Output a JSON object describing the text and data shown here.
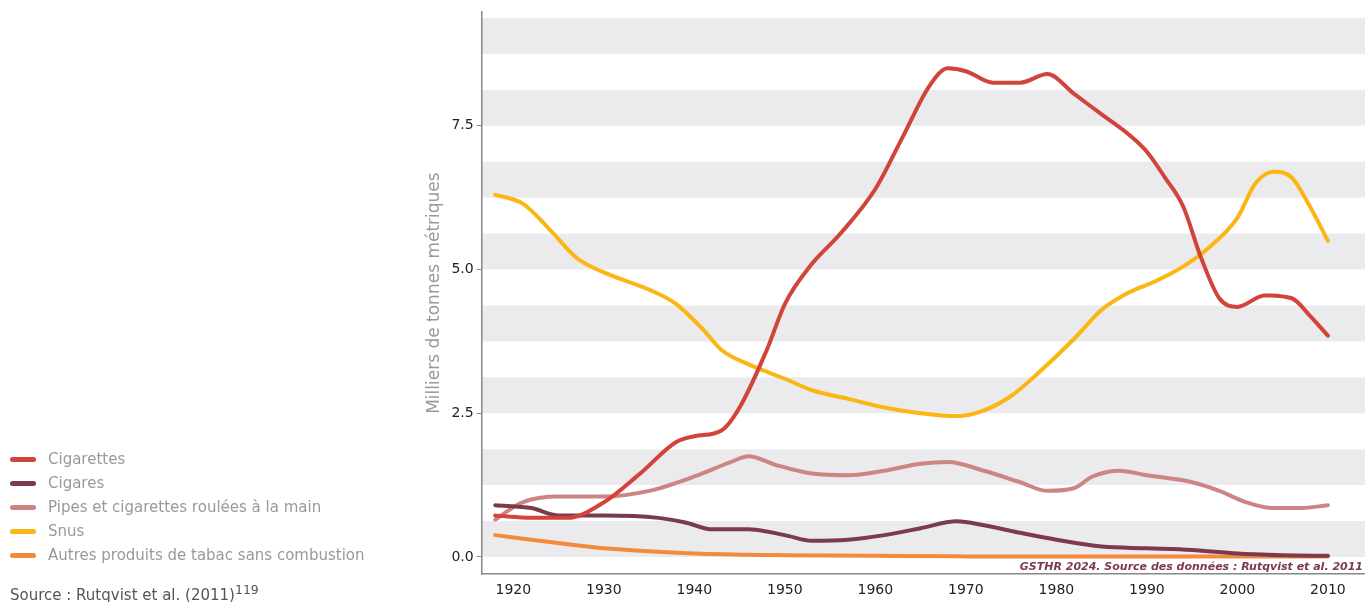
{
  "chart_data": {
    "type": "line",
    "ylabel": "Milliers de tonnes métriques",
    "xlim": [
      1916.5,
      2014.1
    ],
    "xticks": [
      1920,
      1930,
      1940,
      1950,
      1960,
      1970,
      1980,
      1990,
      2000,
      2010
    ],
    "ylim": [
      -0.3,
      9.48
    ],
    "yticks": [
      {
        "value": 0,
        "label": "0.0"
      },
      2.5,
      {
        "value": 5,
        "label": "5.0"
      },
      7.5
    ],
    "legend": "bottom left",
    "marker": "none",
    "line_style": "solid",
    "bands": [
      {
        "axis": "y",
        "from": 0,
        "to": 0.625,
        "color": "#ebebed"
      },
      {
        "axis": "y",
        "from": 1.25,
        "to": 1.875,
        "color": "#ebebed"
      },
      {
        "axis": "y",
        "from": 2.5,
        "to": 3.125,
        "color": "#ebebed"
      },
      {
        "axis": "y",
        "from": 3.75,
        "to": 4.375,
        "color": "#ebebed"
      },
      {
        "axis": "y",
        "from": 5,
        "to": 5.625,
        "color": "#ebebed"
      },
      {
        "axis": "y",
        "from": 6.25,
        "to": 6.875,
        "color": "#ebebed"
      },
      {
        "axis": "y",
        "from": 7.5,
        "to": 8.125,
        "color": "#ebebed"
      },
      {
        "axis": "y",
        "from": 8.75,
        "to": 9.375,
        "color": "#ebebed"
      }
    ],
    "annotations": [
      "GSTHR 2024. Source des données : Rutqvist et al. 2011",
      "Source : Rutqvist et al. (2011)$^{119}$"
    ],
    "series": [
      {
        "name": "Cigarettes",
        "color": "#d0443a",
        "x": [
          1918,
          1922,
          1926,
          1930,
          1934,
          1938,
          1940,
          1943,
          1945,
          1948,
          1950,
          1953,
          1956,
          1960,
          1963,
          1966,
          1968,
          1970,
          1973,
          1976,
          1979,
          1982,
          1985,
          1988,
          1990,
          1992,
          1994,
          1996,
          1998,
          2000,
          2003,
          2006,
          2008,
          2010
        ],
        "values": [
          0.72,
          0.68,
          0.68,
          0.95,
          1.45,
          2.0,
          2.1,
          2.2,
          2.6,
          3.6,
          4.4,
          5.1,
          5.6,
          6.4,
          7.3,
          8.2,
          8.5,
          8.45,
          8.25,
          8.25,
          8.4,
          8.05,
          7.7,
          7.35,
          7.05,
          6.6,
          6.1,
          5.2,
          4.5,
          4.35,
          4.55,
          4.5,
          4.2,
          3.85
        ]
      },
      {
        "name": "Cigares",
        "color": "#7d3a4a",
        "x": [
          1918,
          1922,
          1925,
          1930,
          1936,
          1939,
          1942,
          1946,
          1950,
          1953,
          1957,
          1961,
          1965,
          1969,
          1972,
          1976,
          1980,
          1985,
          1990,
          1995,
          2000,
          2005,
          2010
        ],
        "values": [
          0.9,
          0.85,
          0.72,
          0.72,
          0.68,
          0.6,
          0.48,
          0.48,
          0.38,
          0.28,
          0.3,
          0.38,
          0.5,
          0.62,
          0.55,
          0.42,
          0.3,
          0.18,
          0.15,
          0.12,
          0.06,
          0.03,
          0.02
        ]
      },
      {
        "name": "Pipes et cigarettes roulées à la main",
        "color": "#cc8583",
        "x": [
          1918,
          1921,
          1925,
          1930,
          1935,
          1940,
          1944,
          1946,
          1949,
          1953,
          1957,
          1961,
          1965,
          1968,
          1972,
          1976,
          1979,
          1982,
          1984,
          1987,
          1990,
          1995,
          1998,
          2001,
          2004,
          2007,
          2010
        ],
        "values": [
          0.65,
          0.95,
          1.05,
          1.05,
          1.15,
          1.4,
          1.65,
          1.75,
          1.6,
          1.45,
          1.42,
          1.5,
          1.62,
          1.65,
          1.5,
          1.3,
          1.15,
          1.2,
          1.4,
          1.5,
          1.42,
          1.3,
          1.15,
          0.95,
          0.85,
          0.85,
          0.9
        ]
      },
      {
        "name": "Snus",
        "color": "#fbb614",
        "x": [
          1918,
          1921,
          1924,
          1927,
          1930,
          1935,
          1938,
          1941,
          1943,
          1946,
          1950,
          1953,
          1957,
          1961,
          1965,
          1969,
          1972,
          1975,
          1978,
          1982,
          1985,
          1988,
          1991,
          1994,
          1997,
          2000,
          2002,
          2004,
          2006,
          2008,
          2010
        ],
        "values": [
          6.3,
          6.15,
          5.7,
          5.2,
          4.95,
          4.65,
          4.4,
          3.95,
          3.6,
          3.35,
          3.1,
          2.9,
          2.75,
          2.6,
          2.5,
          2.45,
          2.55,
          2.8,
          3.2,
          3.8,
          4.3,
          4.6,
          4.8,
          5.05,
          5.4,
          5.9,
          6.5,
          6.7,
          6.6,
          6.1,
          5.5
        ]
      },
      {
        "name": "Autres produits de tabac sans combustion",
        "color": "#f58a3c",
        "x": [
          1918,
          1922,
          1926,
          1930,
          1935,
          1940,
          1950,
          1960,
          1970,
          1990,
          2010
        ],
        "values": [
          0.38,
          0.3,
          0.22,
          0.15,
          0.1,
          0.06,
          0.03,
          0.02,
          0.01,
          0.01,
          0.01
        ]
      }
    ]
  }
}
